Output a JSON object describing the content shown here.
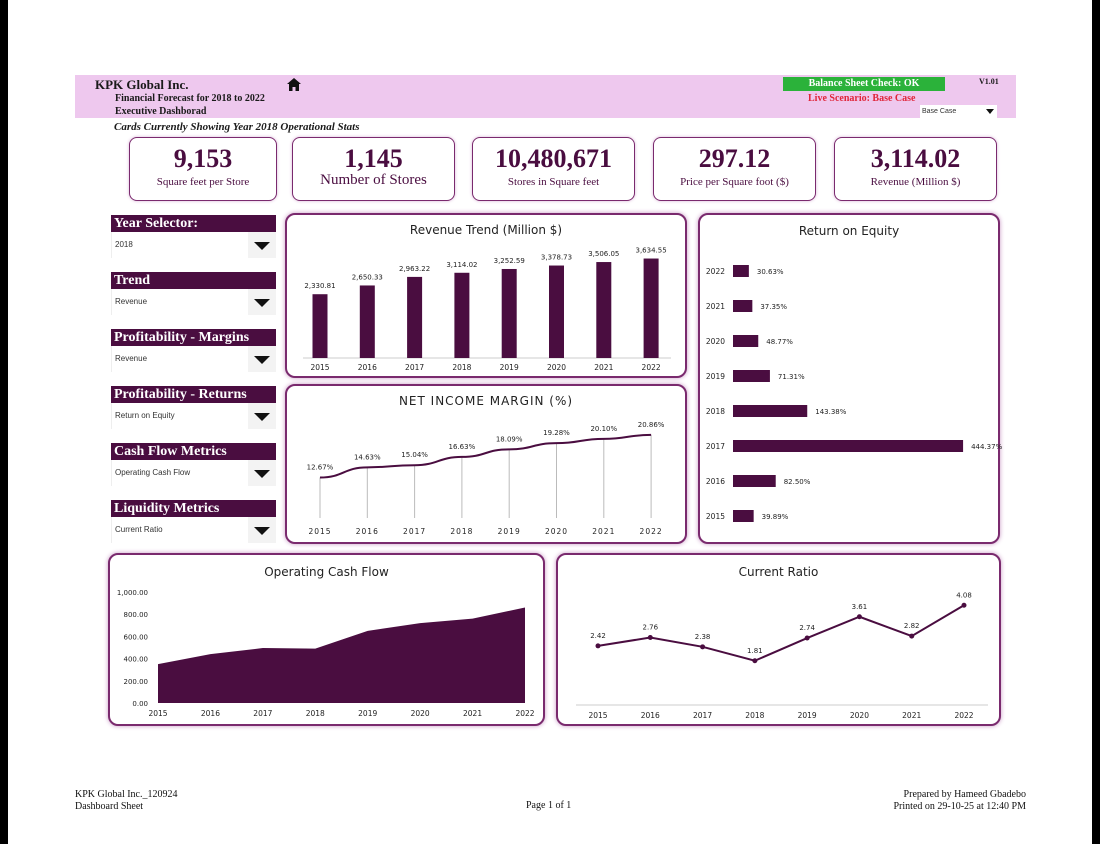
{
  "header": {
    "company": "KPK Global Inc.",
    "subtitle1": "Financial Forecast for 2018 to 2022",
    "subtitle2": "Executive Dashborad",
    "balance_check": "Balance Sheet Check: OK",
    "version": "V1.01",
    "live_scenario": "Live Scenario: Base Case",
    "scenario_select": "Base Case",
    "colors": {
      "header_bg": "#eec8ee",
      "ok_green": "#2bb23a",
      "alert_red": "#e0253a"
    }
  },
  "cards_note": "Cards Currently Showing Year 2018 Operational Stats",
  "kpis": [
    {
      "value": "9,153",
      "label": "Square feet per Store"
    },
    {
      "value": "1,145",
      "label": "Number of Stores"
    },
    {
      "value": "10,480,671",
      "label": "Stores in Square feet"
    },
    {
      "value": "297.12",
      "label": "Price per Square foot ($)"
    },
    {
      "value": "3,114.02",
      "label": "Revenue (Million $)"
    }
  ],
  "selectors": [
    {
      "title": "Year Selector:",
      "value": "2018"
    },
    {
      "title": "Trend",
      "value": "Revenue"
    },
    {
      "title": "Profitability - Margins",
      "value": "Revenue"
    },
    {
      "title": "Profitability - Returns",
      "value": "Return on Equity"
    },
    {
      "title": "Cash Flow Metrics",
      "value": "Operating Cash Flow"
    },
    {
      "title": "Liquidity Metrics",
      "value": "Current Ratio"
    }
  ],
  "accent_color": "#4a0d40",
  "chart_data": [
    {
      "type": "bar",
      "title": "Revenue Trend (Million $)",
      "categories": [
        "2015",
        "2016",
        "2017",
        "2018",
        "2019",
        "2020",
        "2021",
        "2022"
      ],
      "values": [
        2330.81,
        2650.33,
        2963.22,
        3114.02,
        3252.59,
        3378.73,
        3506.05,
        3634.55
      ],
      "labels": [
        "2,330.81",
        "2,650.33",
        "2,963.22",
        "3,114.02",
        "3,252.59",
        "3,378.73",
        "3,506.05",
        "3,634.55"
      ],
      "ylim": [
        0,
        3800
      ]
    },
    {
      "type": "line",
      "title": "NET INCOME MARGIN (%)",
      "categories": [
        "2015",
        "2016",
        "2017",
        "2018",
        "2019",
        "2020",
        "2021",
        "2022"
      ],
      "values": [
        12.67,
        14.63,
        15.04,
        16.63,
        18.09,
        19.28,
        20.1,
        20.86
      ],
      "labels": [
        "12.67%",
        "14.63%",
        "15.04%",
        "16.63%",
        "18.09%",
        "19.28%",
        "20.10%",
        "20.86%"
      ],
      "ylim": [
        0,
        25
      ]
    },
    {
      "type": "bar",
      "orientation": "horizontal",
      "title": "Return on Equity",
      "categories": [
        "2022",
        "2021",
        "2020",
        "2019",
        "2018",
        "2017",
        "2016",
        "2015"
      ],
      "values": [
        30.63,
        37.35,
        48.77,
        71.31,
        143.38,
        444.37,
        82.5,
        39.89
      ],
      "labels": [
        "30.63%",
        "37.35%",
        "48.77%",
        "71.31%",
        "143.38%",
        "444.37%",
        "82.50%",
        "39.89%"
      ],
      "xlim": [
        0,
        450
      ]
    },
    {
      "type": "area",
      "title": "Operating Cash Flow",
      "categories": [
        "2015",
        "2016",
        "2017",
        "2018",
        "2019",
        "2020",
        "2021",
        "2022"
      ],
      "values": [
        350,
        440,
        495,
        490,
        650,
        720,
        760,
        860
      ],
      "yticks": [
        "1,000.00",
        "800.00",
        "600.00",
        "400.00",
        "200.00",
        "0.00"
      ],
      "ylim": [
        0,
        1000
      ]
    },
    {
      "type": "line",
      "title": "Current Ratio",
      "categories": [
        "2015",
        "2016",
        "2017",
        "2018",
        "2019",
        "2020",
        "2021",
        "2022"
      ],
      "values": [
        2.42,
        2.76,
        2.38,
        1.81,
        2.74,
        3.61,
        2.82,
        4.08
      ],
      "labels": [
        "2.42",
        "2.76",
        "2.38",
        "1.81",
        "2.74",
        "3.61",
        "2.82",
        "4.08"
      ],
      "ylim": [
        0,
        4.5
      ]
    }
  ],
  "footer": {
    "left1": "KPK Global Inc._120924",
    "left2": "Dashboard Sheet",
    "center": "Page 1 of 1",
    "right1": "Prepared by Hameed Gbadebo",
    "right2": "Printed on 29-10-25 at 12:40 PM"
  }
}
